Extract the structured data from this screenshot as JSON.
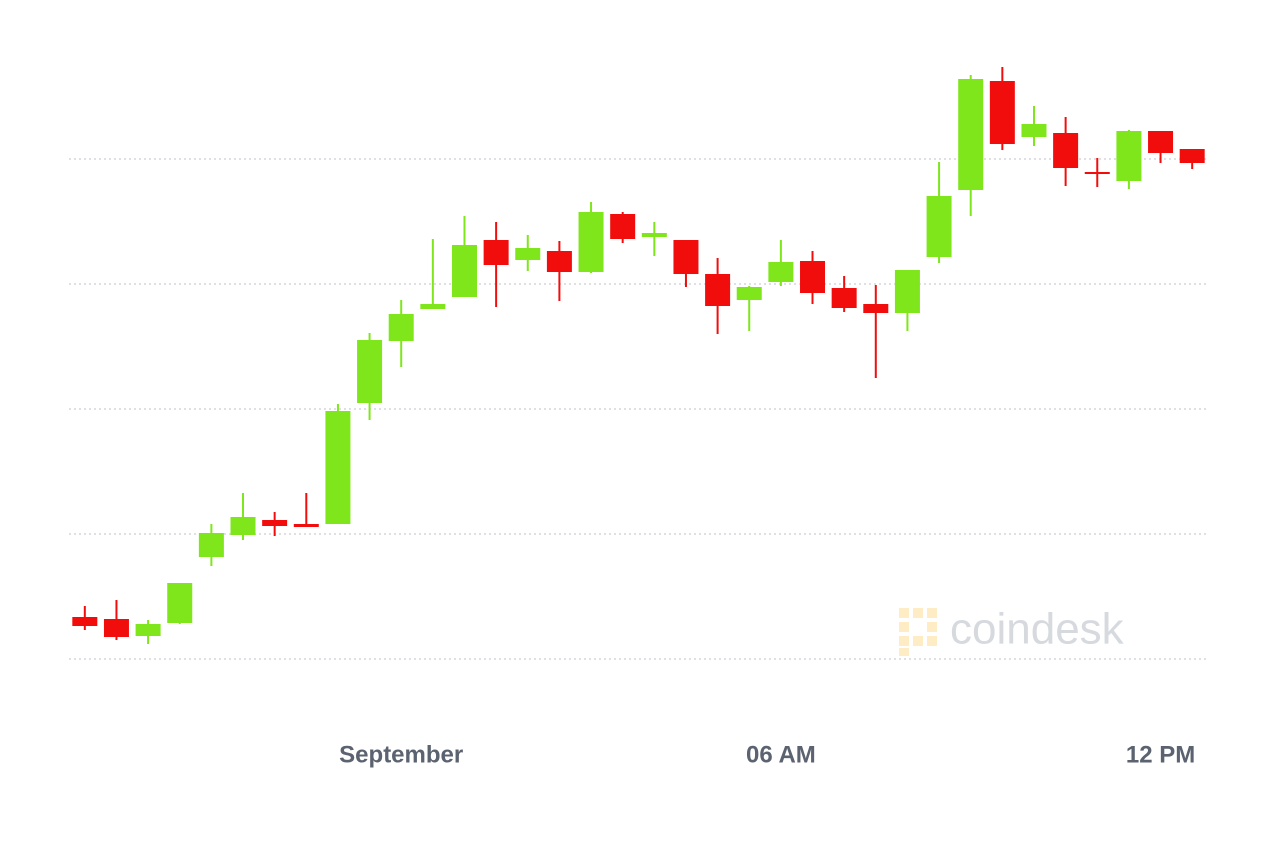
{
  "chart_data": {
    "type": "candlestick",
    "categories": [
      null,
      null,
      null,
      null,
      null,
      null,
      null,
      null,
      null,
      null,
      "September",
      null,
      null,
      null,
      null,
      null,
      null,
      null,
      null,
      null,
      null,
      null,
      "06 AM",
      null,
      null,
      null,
      null,
      null,
      null,
      null,
      null,
      null,
      null,
      null,
      "12 PM",
      null
    ],
    "open": [
      8.4,
      8.0,
      4.6,
      7.2,
      20.4,
      24.8,
      27.8,
      27.0,
      27.0,
      51.2,
      63.6,
      70.0,
      72.4,
      83.8,
      79.8,
      81.6,
      77.4,
      89.0,
      84.4,
      83.8,
      77.0,
      71.8,
      75.4,
      79.6,
      74.2,
      71.0,
      69.2,
      80.4,
      93.8,
      115.6,
      104.4,
      105.2,
      97.4,
      95.6,
      105.6,
      102.0
    ],
    "high": [
      10.6,
      11.8,
      7.8,
      15.2,
      27.0,
      33.2,
      29.4,
      33.2,
      51.0,
      65.2,
      71.8,
      84.0,
      88.6,
      87.4,
      84.8,
      83.6,
      91.4,
      89.4,
      87.4,
      83.8,
      80.2,
      74.6,
      83.8,
      81.6,
      76.6,
      74.8,
      77.8,
      99.4,
      116.8,
      118.4,
      110.6,
      108.4,
      100.2,
      105.8,
      105.6,
      102.0
    ],
    "low": [
      5.8,
      3.8,
      3.0,
      7.0,
      18.6,
      23.8,
      24.6,
      26.4,
      27.0,
      47.8,
      58.4,
      70.0,
      72.4,
      70.4,
      77.6,
      71.6,
      77.2,
      83.2,
      80.6,
      74.4,
      65.0,
      65.6,
      74.6,
      71.0,
      69.4,
      56.2,
      65.6,
      79.2,
      88.6,
      101.8,
      102.6,
      94.6,
      94.4,
      94.0,
      99.2,
      98.0
    ],
    "close": [
      6.6,
      4.4,
      7.0,
      15.2,
      25.2,
      28.4,
      26.6,
      26.4,
      49.6,
      63.8,
      69.0,
      71.0,
      82.8,
      78.8,
      82.2,
      77.4,
      89.4,
      84.0,
      85.2,
      77.0,
      70.6,
      74.4,
      79.4,
      73.2,
      70.2,
      69.2,
      77.8,
      92.6,
      116.0,
      103.0,
      107.0,
      98.2,
      97.2,
      105.6,
      101.2,
      99.2
    ],
    "up_color": "#7ee61a",
    "down_color": "#f20d0d",
    "ylim": [
      -8,
      120
    ],
    "yticks": [
      0,
      25,
      50,
      75,
      100
    ],
    "grid": true,
    "watermark": "coindesk"
  }
}
